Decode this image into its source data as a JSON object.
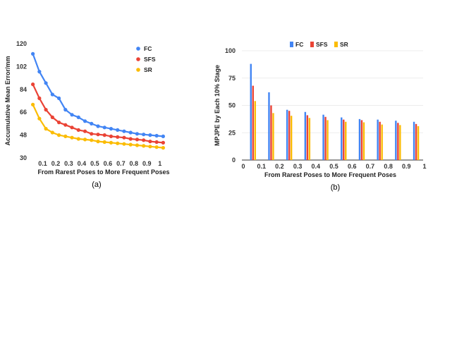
{
  "chart_data": [
    {
      "type": "line",
      "caption": "(a)",
      "xlabel": "From Rarest Poses to More Frequent Poses",
      "ylabel": "Accumulative Mean Error/mm",
      "ylim": [
        30,
        120
      ],
      "yticks": [
        30,
        48,
        66,
        84,
        102,
        120
      ],
      "xlim": [
        0,
        1.05
      ],
      "xticks": [
        0.1,
        0.2,
        0.3,
        0.4,
        0.5,
        0.6,
        0.7,
        0.8,
        0.9,
        1
      ],
      "xtick_labels": [
        "0.1",
        "0.2",
        "0.3",
        "0.4",
        "0.5",
        "0.6",
        "0.7",
        "0.8",
        "0.9",
        "1"
      ],
      "legend": "top-right",
      "x": [
        0.025,
        0.075,
        0.125,
        0.175,
        0.225,
        0.275,
        0.325,
        0.375,
        0.425,
        0.475,
        0.525,
        0.575,
        0.625,
        0.675,
        0.725,
        0.775,
        0.825,
        0.875,
        0.925,
        0.975,
        1.025
      ],
      "series": [
        {
          "name": "FC",
          "color": "#4285f4",
          "values": [
            112,
            98,
            89,
            80,
            77,
            68,
            64,
            62,
            59,
            57,
            55,
            54,
            53,
            52,
            51,
            50,
            49,
            48.5,
            48,
            47.5,
            47
          ]
        },
        {
          "name": "SFS",
          "color": "#ea4335",
          "values": [
            88,
            77,
            68,
            62,
            58,
            56,
            54,
            52,
            51,
            49,
            48.5,
            48,
            47,
            46.5,
            46,
            45,
            44.5,
            44,
            43,
            42.5,
            42
          ]
        },
        {
          "name": "SR",
          "color": "#fbbc04",
          "values": [
            72,
            61,
            53,
            50,
            48,
            47,
            46,
            45,
            44.5,
            44,
            43,
            42.5,
            42,
            41.5,
            41,
            40.5,
            40,
            39.5,
            39,
            38.5,
            38
          ]
        }
      ]
    },
    {
      "type": "bar",
      "caption": "(b)",
      "xlabel": "From Rarest Poses to More Frequent Poses",
      "ylabel": "MPJPE  by Each 10% Stage",
      "ylim": [
        0,
        100
      ],
      "yticks": [
        0,
        25,
        50,
        75,
        100
      ],
      "xtick_labels": [
        "0",
        "0.1",
        "0.2",
        "0.3",
        "0.4",
        "0.5",
        "0.6",
        "0.7",
        "0.8",
        "0.9",
        "1"
      ],
      "legend": "top",
      "categories": [
        "0-0.1",
        "0.1-0.2",
        "0.2-0.3",
        "0.3-0.4",
        "0.4-0.5",
        "0.5-0.6",
        "0.6-0.7",
        "0.7-0.8",
        "0.8-0.9",
        "0.9-1"
      ],
      "series": [
        {
          "name": "FC",
          "color": "#4285f4",
          "values": [
            88,
            62,
            46,
            44,
            41.5,
            39,
            37.5,
            37,
            36,
            35
          ]
        },
        {
          "name": "SFS",
          "color": "#ea4335",
          "values": [
            68,
            50,
            45,
            41,
            39.5,
            37,
            36.5,
            35,
            34,
            33
          ]
        },
        {
          "name": "SR",
          "color": "#fbbc04",
          "values": [
            54,
            43,
            40.5,
            38.5,
            36.5,
            35,
            34.5,
            32.5,
            32,
            31
          ]
        }
      ]
    }
  ]
}
